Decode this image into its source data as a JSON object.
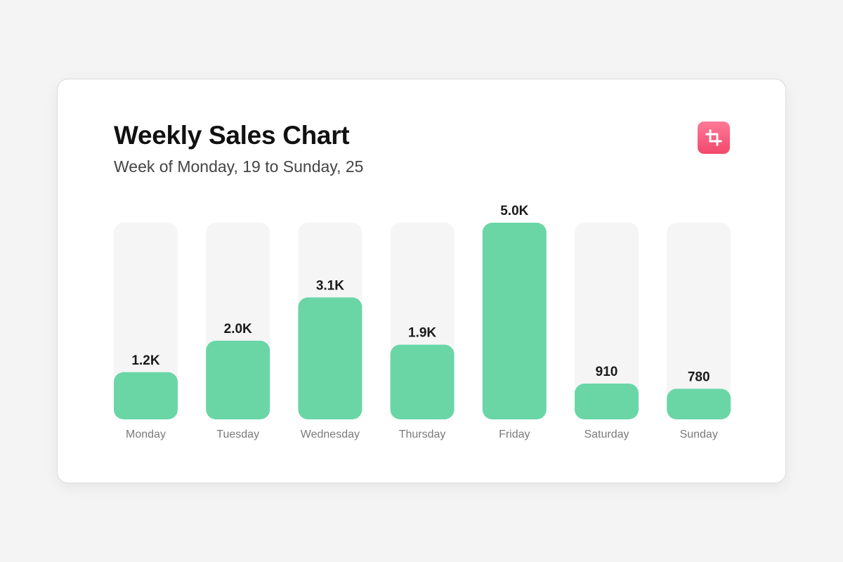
{
  "header": {
    "title": "Weekly Sales Chart",
    "subtitle": "Week of Monday, 19 to Sunday, 25",
    "action_icon": "crop-icon"
  },
  "colors": {
    "page_bg": "#f4f4f4",
    "card_bg": "#ffffff",
    "bar": "#6ad6a6",
    "track": "#f5f5f5",
    "accent": "#f2486a"
  },
  "chart_data": {
    "type": "bar",
    "title": "Weekly Sales Chart",
    "subtitle": "Week of Monday, 19 to Sunday, 25",
    "categories": [
      "Monday",
      "Tuesday",
      "Wednesday",
      "Thursday",
      "Friday",
      "Saturday",
      "Sunday"
    ],
    "values": [
      1200,
      2000,
      3100,
      1900,
      5000,
      910,
      780
    ],
    "value_labels": [
      "1.2K",
      "2.0K",
      "3.1K",
      "1.9K",
      "5.0K",
      "910",
      "780"
    ],
    "ylim": [
      0,
      5000
    ],
    "grid": false,
    "legend": "none"
  }
}
